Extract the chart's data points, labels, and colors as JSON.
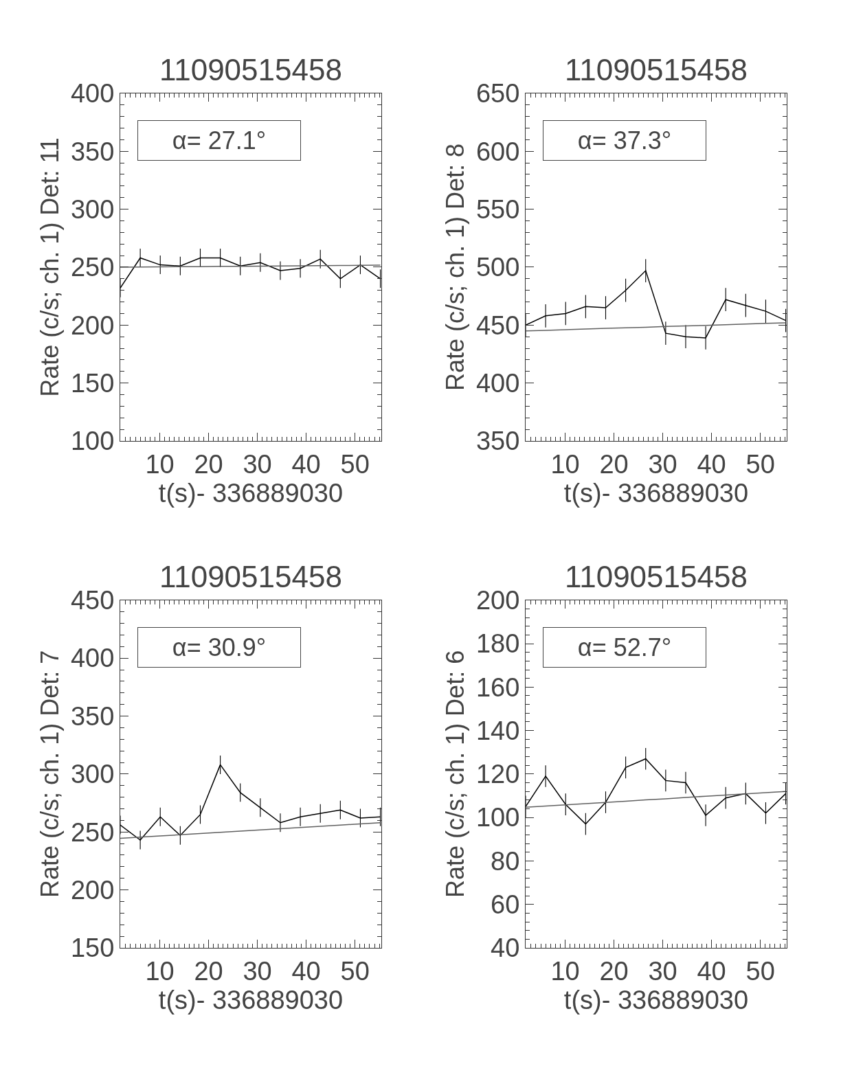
{
  "chart_data": [
    {
      "type": "line",
      "title": "11090515458",
      "xlabel": "t(s)- 336889030",
      "ylabel": "Rate (c/s; ch. 1) Det: 11",
      "annotations": [
        "α= 27.1°"
      ],
      "x": [
        1.9,
        6.0,
        10.1,
        14.2,
        18.3,
        22.4,
        26.5,
        30.6,
        34.7,
        38.8,
        42.9,
        47.0,
        51.1,
        55.2
      ],
      "xlim": [
        1.9,
        55.4
      ],
      "xticks": [
        10,
        20,
        30,
        40,
        50
      ],
      "ylim": [
        100,
        400
      ],
      "yticks": [
        100,
        150,
        200,
        250,
        300,
        350,
        400
      ],
      "marker": "none",
      "line_style": "solid",
      "series": [
        {
          "color": "#000000",
          "values": [
            232,
            258,
            252,
            251,
            258,
            258,
            251,
            254,
            247,
            249,
            257,
            240,
            252,
            240
          ],
          "errors": [
            8,
            8,
            8,
            8,
            8,
            8,
            8,
            8,
            8,
            8,
            8,
            8,
            8,
            8
          ]
        },
        {
          "type": "line",
          "color": "#606060",
          "values": [
            250.0,
            250.1,
            250.3,
            250.4,
            250.5,
            250.7,
            250.8,
            250.9,
            251.0,
            251.2,
            251.3,
            251.4,
            251.6,
            251.7
          ]
        }
      ]
    },
    {
      "type": "line",
      "title": "11090515458",
      "xlabel": "t(s)- 336889030",
      "ylabel": "Rate (c/s; ch. 1) Det: 8",
      "annotations": [
        "α= 37.3°"
      ],
      "x": [
        1.9,
        6.0,
        10.1,
        14.2,
        18.3,
        22.4,
        26.5,
        30.6,
        34.7,
        38.8,
        42.9,
        47.0,
        51.1,
        55.2
      ],
      "xlim": [
        1.9,
        55.4
      ],
      "xticks": [
        10,
        20,
        30,
        40,
        50
      ],
      "ylim": [
        350,
        650
      ],
      "yticks": [
        350,
        400,
        450,
        500,
        550,
        600,
        650
      ],
      "marker": "none",
      "line_style": "solid",
      "series": [
        {
          "color": "#000000",
          "values": [
            450,
            458,
            460,
            466,
            465,
            480,
            497,
            443,
            440,
            439,
            472,
            467,
            462,
            454
          ],
          "errors": [
            10,
            10,
            10,
            10,
            10,
            10,
            10,
            10,
            10,
            10,
            10,
            10,
            10,
            10
          ]
        },
        {
          "type": "line",
          "color": "#606060",
          "values": [
            445.0,
            445.5,
            446.1,
            446.6,
            447.2,
            447.7,
            448.2,
            448.8,
            449.3,
            449.8,
            450.4,
            450.9,
            451.5,
            452.0
          ]
        }
      ]
    },
    {
      "type": "line",
      "title": "11090515458",
      "xlabel": "t(s)- 336889030",
      "ylabel": "Rate (c/s; ch. 1) Det: 7",
      "annotations": [
        "α= 30.9°"
      ],
      "x": [
        1.9,
        6.0,
        10.1,
        14.2,
        18.3,
        22.4,
        26.5,
        30.6,
        34.7,
        38.8,
        42.9,
        47.0,
        51.1,
        55.2
      ],
      "xlim": [
        1.9,
        55.4
      ],
      "xticks": [
        10,
        20,
        30,
        40,
        50
      ],
      "ylim": [
        150,
        450
      ],
      "yticks": [
        150,
        200,
        250,
        300,
        350,
        400,
        450
      ],
      "marker": "none",
      "line_style": "solid",
      "series": [
        {
          "color": "#000000",
          "values": [
            256,
            243,
            263,
            247,
            265,
            308,
            284,
            271,
            258,
            263,
            266,
            269,
            262,
            263
          ],
          "errors": [
            8,
            8,
            8,
            8,
            8,
            8,
            8,
            8,
            8,
            8,
            8,
            8,
            8,
            8
          ]
        },
        {
          "type": "line",
          "color": "#606060",
          "values": [
            244.5,
            245.5,
            246.6,
            247.6,
            248.7,
            249.7,
            250.7,
            251.8,
            252.8,
            253.8,
            254.9,
            255.9,
            257.0,
            258.0
          ]
        }
      ]
    },
    {
      "type": "line",
      "title": "11090515458",
      "xlabel": "t(s)- 336889030",
      "ylabel": "Rate (c/s; ch. 1) Det: 6",
      "annotations": [
        "α= 52.7°"
      ],
      "x": [
        1.9,
        6.0,
        10.1,
        14.2,
        18.3,
        22.4,
        26.5,
        30.6,
        34.7,
        38.8,
        42.9,
        47.0,
        51.1,
        55.2
      ],
      "xlim": [
        1.9,
        55.4
      ],
      "xticks": [
        10,
        20,
        30,
        40,
        50
      ],
      "ylim": [
        40,
        200
      ],
      "yticks": [
        40,
        60,
        80,
        100,
        120,
        140,
        160,
        180,
        200
      ],
      "marker": "none",
      "line_style": "solid",
      "series": [
        {
          "color": "#000000",
          "values": [
            105,
            119,
            106,
            97,
            107,
            123,
            127,
            117,
            116,
            101,
            109,
            111,
            102,
            111
          ],
          "errors": [
            5,
            5,
            5,
            5,
            5,
            5,
            5,
            5,
            5,
            5,
            5,
            5,
            5,
            5
          ]
        },
        {
          "type": "line",
          "color": "#606060",
          "values": [
            104.7,
            105.3,
            105.8,
            106.4,
            106.9,
            107.5,
            108.1,
            108.6,
            109.2,
            109.8,
            110.3,
            110.9,
            111.4,
            112.0
          ]
        }
      ]
    }
  ]
}
